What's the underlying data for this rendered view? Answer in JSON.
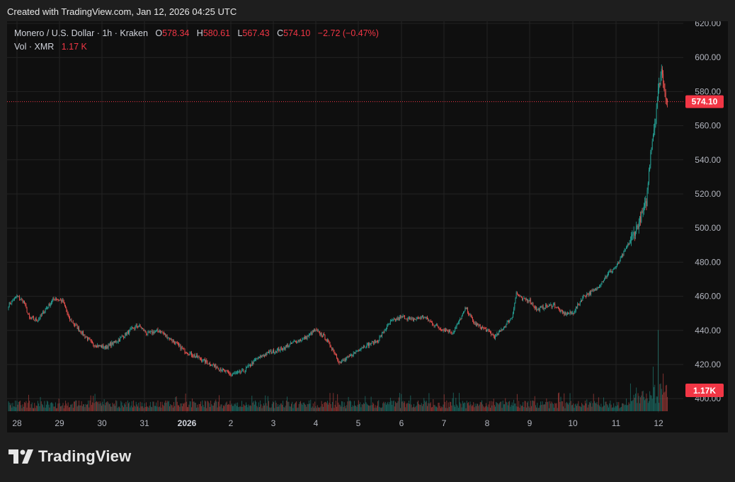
{
  "header": {
    "text": "Created with TradingView.com, Jan 12, 2026 04:25 UTC"
  },
  "legend": {
    "symbol": "Monero / U.S. Dollar · 1h · Kraken",
    "o_label": "O",
    "o_value": "578.34",
    "h_label": "H",
    "h_value": "580.61",
    "l_label": "L",
    "l_value": "567.43",
    "c_label": "C",
    "c_value": "574.10",
    "change": "−2.72 (−0.47%)",
    "vol_label": "Vol · XMR",
    "vol_value": "1.17 K"
  },
  "price_badge": "574.10",
  "volume_badge": "1.17K",
  "brand": {
    "name": "TradingView"
  },
  "colors": {
    "up": "#26a69a",
    "down": "#ef5350",
    "badge": "#f23645",
    "grid": "#232323",
    "background": "#0f0f0f"
  },
  "chart_data": {
    "type": "candlestick",
    "title": "Monero / U.S. Dollar · 1h · Kraken",
    "y_ticks": [
      "620.00",
      "600.00",
      "580.00",
      "560.00",
      "540.00",
      "520.00",
      "500.00",
      "480.00",
      "460.00",
      "440.00",
      "420.00",
      "400.00"
    ],
    "x_ticks": [
      "28",
      "29",
      "30",
      "31",
      "2026",
      "2",
      "3",
      "4",
      "5",
      "6",
      "7",
      "8",
      "9",
      "10",
      "11",
      "12"
    ],
    "ylim": [
      400,
      620
    ],
    "last_price": 574.1,
    "anchors": [
      [
        0,
        455
      ],
      [
        10,
        460
      ],
      [
        18,
        457
      ],
      [
        25,
        447
      ],
      [
        35,
        446
      ],
      [
        45,
        453
      ],
      [
        55,
        459
      ],
      [
        65,
        457
      ],
      [
        72,
        447
      ],
      [
        85,
        440
      ],
      [
        100,
        432
      ],
      [
        115,
        430
      ],
      [
        130,
        434
      ],
      [
        145,
        440
      ],
      [
        155,
        443
      ],
      [
        165,
        438
      ],
      [
        180,
        440
      ],
      [
        195,
        434
      ],
      [
        210,
        428
      ],
      [
        230,
        423
      ],
      [
        250,
        418
      ],
      [
        265,
        414
      ],
      [
        280,
        416
      ],
      [
        295,
        423
      ],
      [
        310,
        427
      ],
      [
        325,
        429
      ],
      [
        340,
        433
      ],
      [
        355,
        436
      ],
      [
        365,
        440
      ],
      [
        375,
        437
      ],
      [
        385,
        430
      ],
      [
        395,
        421
      ],
      [
        405,
        424
      ],
      [
        420,
        430
      ],
      [
        440,
        434
      ],
      [
        455,
        445
      ],
      [
        470,
        448
      ],
      [
        480,
        446
      ],
      [
        495,
        448
      ],
      [
        505,
        444
      ],
      [
        515,
        441
      ],
      [
        530,
        439
      ],
      [
        545,
        453
      ],
      [
        555,
        444
      ],
      [
        570,
        440
      ],
      [
        580,
        436
      ],
      [
        600,
        448
      ],
      [
        605,
        462
      ],
      [
        612,
        458
      ],
      [
        620,
        458
      ],
      [
        630,
        452
      ],
      [
        640,
        454
      ],
      [
        650,
        455
      ],
      [
        660,
        450
      ],
      [
        672,
        450
      ],
      [
        685,
        460
      ],
      [
        700,
        464
      ],
      [
        712,
        472
      ],
      [
        725,
        478
      ],
      [
        740,
        492
      ],
      [
        750,
        502
      ],
      [
        760,
        515
      ],
      [
        765,
        545
      ],
      [
        770,
        562
      ],
      [
        774,
        580
      ],
      [
        778,
        593
      ],
      [
        782,
        580
      ],
      [
        785,
        574
      ]
    ],
    "volume_peaks": [
      [
        768,
        0.45
      ],
      [
        774,
        0.82
      ],
      [
        777,
        0.28
      ],
      [
        780,
        0.38
      ]
    ]
  }
}
